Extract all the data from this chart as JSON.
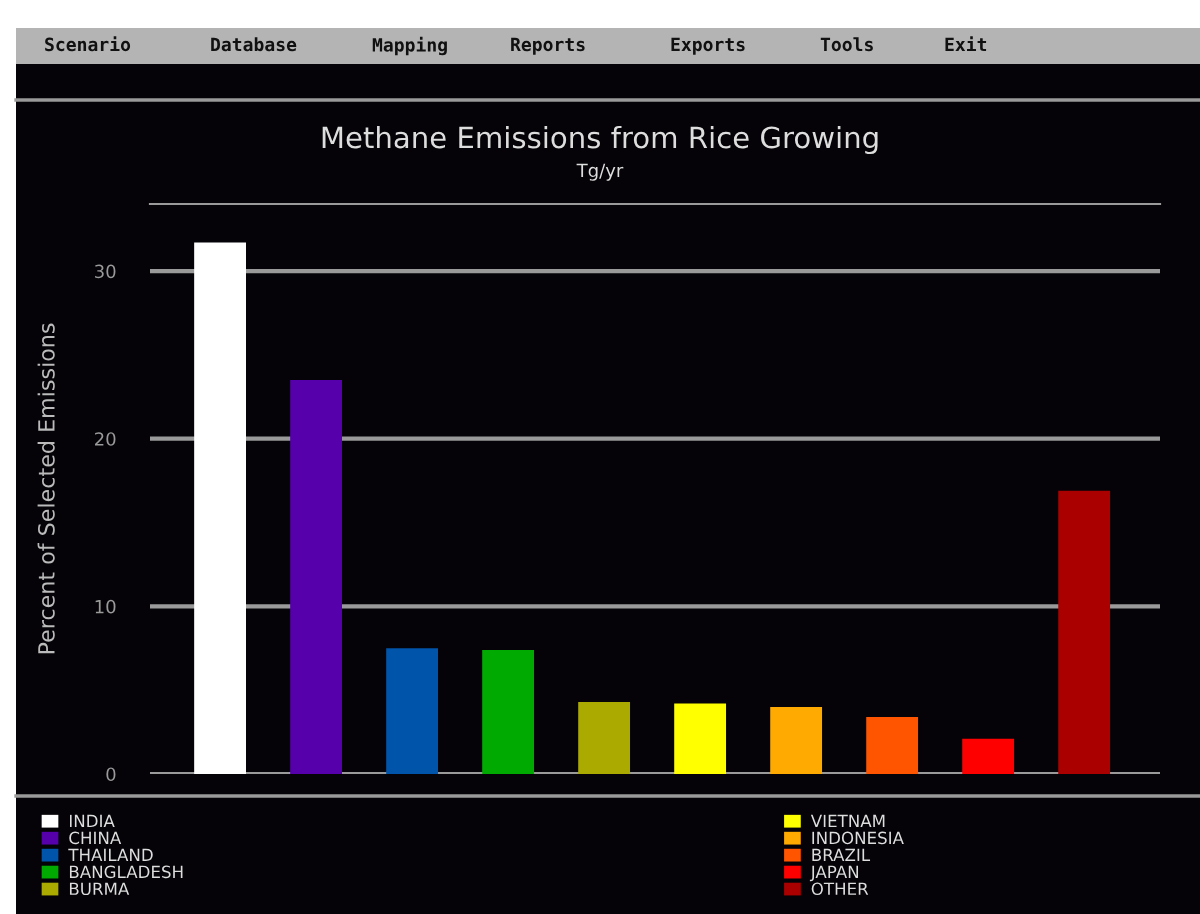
{
  "chart_data": {
    "type": "bar",
    "title": "Methane Emissions from Rice Growing",
    "subtitle": "Tg/yr",
    "ylabel": "Percent of Selected Emissions",
    "annotations": [
      "Scenario",
      "Database",
      "Mapping",
      "Reports",
      "Exports",
      "Tools",
      "Exit"
    ],
    "categories": [
      null
    ],
    "series": [
      {
        "name": "INDIA",
        "color": "#ffffff",
        "values": [
          31.7
        ]
      },
      {
        "name": "CHINA",
        "color": "#5500aa",
        "values": [
          23.5
        ]
      },
      {
        "name": "THAILAND",
        "color": "#0055aa",
        "values": [
          7.5
        ]
      },
      {
        "name": "BANGLADESH",
        "color": "#00aa00",
        "values": [
          7.4
        ]
      },
      {
        "name": "BURMA",
        "color": "#aaaa00",
        "values": [
          4.3
        ]
      },
      {
        "name": "VIETNAM",
        "color": "#ffff00",
        "values": [
          4.2
        ]
      },
      {
        "name": "INDONESIA",
        "color": "#ffaa00",
        "values": [
          4.0
        ]
      },
      {
        "name": "BRAZIL",
        "color": "#ff5500",
        "values": [
          3.4
        ]
      },
      {
        "name": "JAPAN",
        "color": "#ff0000",
        "values": [
          2.1
        ]
      },
      {
        "name": "OTHER",
        "color": "#aa0000",
        "values": [
          16.9
        ]
      }
    ],
    "ylim": [
      0,
      34
    ],
    "yticks": [
      0,
      10,
      20,
      30
    ],
    "grid": "y",
    "legend": "bottom",
    "tick_labels": "y"
  }
}
